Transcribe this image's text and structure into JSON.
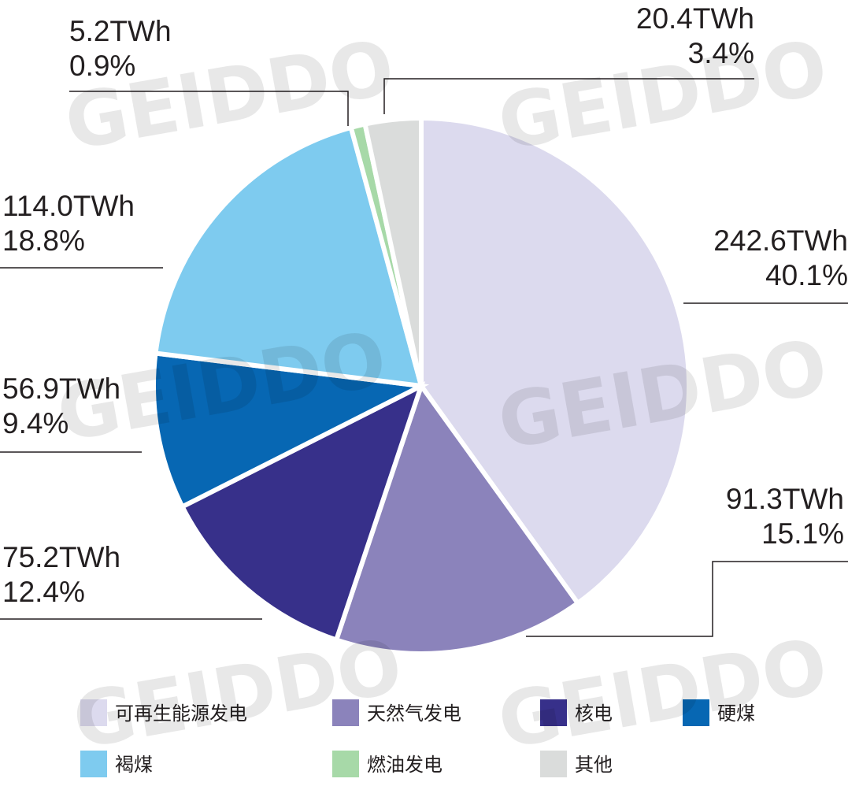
{
  "watermark": "GEIDDO",
  "chart_data": {
    "type": "pie",
    "unit": "TWh",
    "slices": [
      {
        "name": "可再生能源发电",
        "value": 242.6,
        "value_label": "242.6TWh",
        "percent": 40.1,
        "percent_label": "40.1%",
        "color": "#dcdaee"
      },
      {
        "name": "天然气发电",
        "value": 91.3,
        "value_label": "91.3TWh",
        "percent": 15.1,
        "percent_label": "15.1%",
        "color": "#8b83bb"
      },
      {
        "name": "核电",
        "value": 75.2,
        "value_label": "75.2TWh",
        "percent": 12.4,
        "percent_label": "12.4%",
        "color": "#37308a"
      },
      {
        "name": "硬煤",
        "value": 56.9,
        "value_label": "56.9TWh",
        "percent": 9.4,
        "percent_label": "9.4%",
        "color": "#0767b3"
      },
      {
        "name": "褐煤",
        "value": 114.0,
        "value_label": "114.0TWh",
        "percent": 18.8,
        "percent_label": "18.8%",
        "color": "#7ecbef"
      },
      {
        "name": "燃油发电",
        "value": 5.2,
        "value_label": "5.2TWh",
        "percent": 0.9,
        "percent_label": "0.9%",
        "color": "#a7d9a8"
      },
      {
        "name": "其他",
        "value": 20.4,
        "value_label": "20.4TWh",
        "percent": 3.4,
        "percent_label": "3.4%",
        "color": "#dadcdb"
      }
    ],
    "legend_position": "bottom",
    "start": "12 o'clock, clockwise"
  }
}
